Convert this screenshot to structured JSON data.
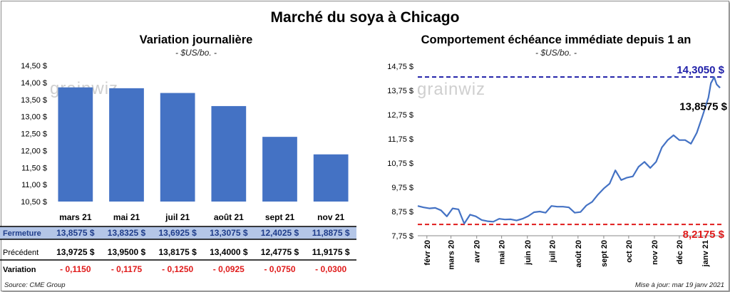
{
  "title": "Marché du soya à Chicago",
  "left_chart": {
    "title": "Variation  journalière",
    "unit": "- $US/bo. -"
  },
  "right_chart": {
    "title": "Comportement  échéance immédiate depuis 1 an",
    "unit": "- $US/bo. -"
  },
  "watermark": "grainwiz",
  "footer": {
    "source": "Source: CME Group",
    "updated": "Mise à jour: mar 19 janv 2021"
  },
  "table": {
    "rows": [
      {
        "label": "Fermeture",
        "values": [
          "13,8575  $",
          "13,8325  $",
          "13,6925  $",
          "13,3075  $",
          "12,4025  $",
          "11,8875  $"
        ]
      },
      {
        "label": "Précédent",
        "values": [
          "13,9725  $",
          "13,9500  $",
          "13,8175  $",
          "13,4000  $",
          "12,4775  $",
          "11,9175  $"
        ]
      },
      {
        "label": "Variation",
        "values": [
          "- 0,1150",
          "- 0,1175",
          "- 0,1250",
          "- 0,0925",
          "- 0,0750",
          "- 0,0300"
        ]
      }
    ]
  },
  "colors": {
    "bar": "#4472c4",
    "line": "#4472c4",
    "high": "#1f1fa8",
    "low": "#e01b1b",
    "negative": "#e01b1b",
    "highlight_row": "#b4c6e7"
  },
  "chart_data": [
    {
      "type": "bar",
      "title": "Variation  journalière",
      "categories": [
        "mars 21",
        "mai 21",
        "juil 21",
        "août 21",
        "sept 21",
        "nov 21"
      ],
      "values": [
        13.8575,
        13.8325,
        13.6925,
        13.3075,
        12.4025,
        11.8875
      ],
      "ylim": [
        10.5,
        14.5
      ],
      "yticks": [
        "10,50 $",
        "11,00 $",
        "11,50 $",
        "12,00 $",
        "12,50 $",
        "13,00 $",
        "13,50 $",
        "14,00 $",
        "14,50 $"
      ],
      "ytick_values": [
        10.5,
        11.0,
        11.5,
        12.0,
        12.5,
        13.0,
        13.5,
        14.0,
        14.5
      ]
    },
    {
      "type": "line",
      "title": "Comportement  échéance immédiate depuis 1 an",
      "x": [
        "2020-01-21",
        "2020-01-28",
        "2020-02-04",
        "2020-02-11",
        "2020-02-18",
        "2020-02-25",
        "2020-03-03",
        "2020-03-10",
        "2020-03-17",
        "2020-03-24",
        "2020-03-31",
        "2020-04-07",
        "2020-04-14",
        "2020-04-21",
        "2020-04-28",
        "2020-05-05",
        "2020-05-12",
        "2020-05-19",
        "2020-05-26",
        "2020-06-02",
        "2020-06-09",
        "2020-06-16",
        "2020-06-23",
        "2020-06-30",
        "2020-07-07",
        "2020-07-14",
        "2020-07-21",
        "2020-07-28",
        "2020-08-04",
        "2020-08-11",
        "2020-08-18",
        "2020-08-25",
        "2020-09-01",
        "2020-09-08",
        "2020-09-15",
        "2020-09-22",
        "2020-09-29",
        "2020-10-06",
        "2020-10-13",
        "2020-10-20",
        "2020-10-27",
        "2020-11-03",
        "2020-11-10",
        "2020-11-17",
        "2020-11-24",
        "2020-12-01",
        "2020-12-08",
        "2020-12-15",
        "2020-12-22",
        "2020-12-29",
        "2021-01-05",
        "2021-01-08",
        "2021-01-12",
        "2021-01-15",
        "2021-01-19"
      ],
      "y": [
        8.98,
        8.92,
        8.88,
        8.9,
        8.8,
        8.55,
        8.88,
        8.84,
        8.25,
        8.62,
        8.55,
        8.4,
        8.35,
        8.33,
        8.45,
        8.42,
        8.43,
        8.38,
        8.45,
        8.56,
        8.72,
        8.75,
        8.7,
        8.98,
        8.95,
        8.95,
        8.92,
        8.7,
        8.73,
        9.0,
        9.15,
        9.45,
        9.7,
        9.9,
        10.45,
        10.05,
        10.15,
        10.2,
        10.6,
        10.8,
        10.55,
        10.8,
        11.4,
        11.7,
        11.9,
        11.7,
        11.7,
        11.55,
        12.0,
        12.7,
        13.45,
        14.05,
        14.3,
        14.0,
        13.8575
      ],
      "ylim": [
        7.75,
        14.75
      ],
      "yticks": [
        "7,75 $",
        "8,75 $",
        "9,75 $",
        "10,75 $",
        "11,75 $",
        "12,75 $",
        "13,75 $",
        "14,75 $"
      ],
      "ytick_values": [
        7.75,
        8.75,
        9.75,
        10.75,
        11.75,
        12.75,
        13.75,
        14.75
      ],
      "xticks": [
        "févr 20",
        "mars 20",
        "avr 20",
        "mai 20",
        "juin 20",
        "juil 20",
        "août 20",
        "sept 20",
        "oct 20",
        "nov 20",
        "déc 20",
        "janv 21"
      ],
      "xtick_dates": [
        "2020-02-01",
        "2020-03-01",
        "2020-04-01",
        "2020-05-01",
        "2020-06-01",
        "2020-07-01",
        "2020-08-01",
        "2020-09-01",
        "2020-10-01",
        "2020-11-01",
        "2020-12-01",
        "2021-01-01"
      ],
      "high": {
        "value": 14.305,
        "label": "14,3050 $"
      },
      "low": {
        "value": 8.2175,
        "label": "8,2175 $"
      },
      "last": {
        "value": 13.8575,
        "label": "13,8575 $"
      }
    }
  ]
}
